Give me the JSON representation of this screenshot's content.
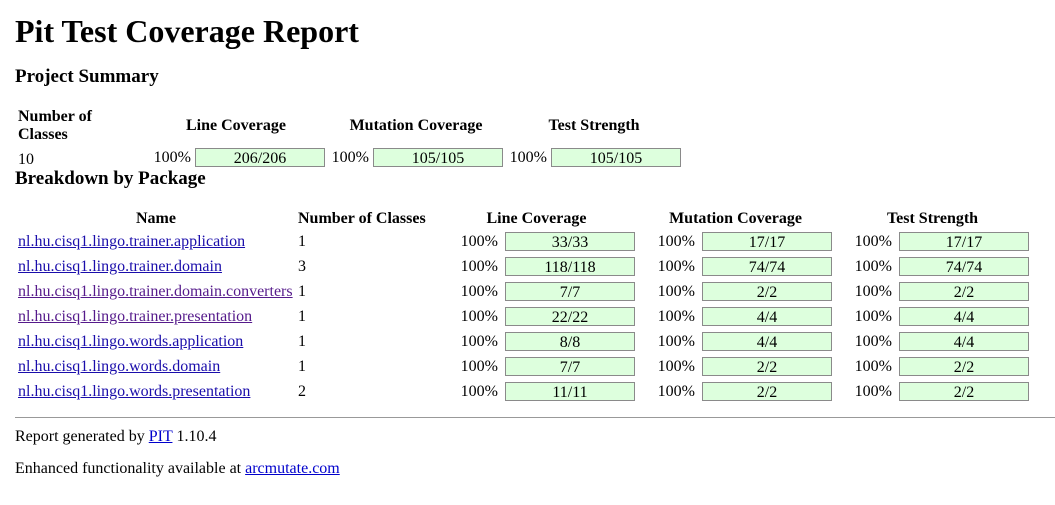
{
  "title": "Pit Test Coverage Report",
  "project_summary": {
    "heading": "Project Summary",
    "headers": [
      "Number of Classes",
      "Line Coverage",
      "Mutation Coverage",
      "Test Strength"
    ],
    "classes": "10",
    "line": {
      "pct": "100%",
      "ratio": "206/206"
    },
    "mutation": {
      "pct": "100%",
      "ratio": "105/105"
    },
    "strength": {
      "pct": "100%",
      "ratio": "105/105"
    }
  },
  "breakdown": {
    "heading": "Breakdown by Package",
    "headers": [
      "Name",
      "Number of Classes",
      "Line Coverage",
      "Mutation Coverage",
      "Test Strength"
    ],
    "rows": [
      {
        "name": "nl.hu.cisq1.lingo.trainer.application",
        "classes": "1",
        "line_pct": "100%",
        "line": "33/33",
        "mut_pct": "100%",
        "mut": "17/17",
        "str_pct": "100%",
        "str": "17/17"
      },
      {
        "name": "nl.hu.cisq1.lingo.trainer.domain",
        "classes": "3",
        "line_pct": "100%",
        "line": "118/118",
        "mut_pct": "100%",
        "mut": "74/74",
        "str_pct": "100%",
        "str": "74/74"
      },
      {
        "name": "nl.hu.cisq1.lingo.trainer.domain.converters",
        "classes": "1",
        "line_pct": "100%",
        "line": "7/7",
        "mut_pct": "100%",
        "mut": "2/2",
        "str_pct": "100%",
        "str": "2/2"
      },
      {
        "name": "nl.hu.cisq1.lingo.trainer.presentation",
        "classes": "1",
        "line_pct": "100%",
        "line": "22/22",
        "mut_pct": "100%",
        "mut": "4/4",
        "str_pct": "100%",
        "str": "4/4"
      },
      {
        "name": "nl.hu.cisq1.lingo.words.application",
        "classes": "1",
        "line_pct": "100%",
        "line": "8/8",
        "mut_pct": "100%",
        "mut": "4/4",
        "str_pct": "100%",
        "str": "4/4"
      },
      {
        "name": "nl.hu.cisq1.lingo.words.domain",
        "classes": "1",
        "line_pct": "100%",
        "line": "7/7",
        "mut_pct": "100%",
        "mut": "2/2",
        "str_pct": "100%",
        "str": "2/2"
      },
      {
        "name": "nl.hu.cisq1.lingo.words.presentation",
        "classes": "2",
        "line_pct": "100%",
        "line": "11/11",
        "mut_pct": "100%",
        "mut": "2/2",
        "str_pct": "100%",
        "str": "2/2"
      }
    ]
  },
  "footer": {
    "generated_prefix": "Report generated by",
    "pit_link": "PIT",
    "version": "1.10.4",
    "enhanced_prefix": "Enhanced functionality available at",
    "arcmutate_link": "arcmutate.com"
  },
  "colors": {
    "bar_fill": "#ddffdd",
    "link": "#0000cc",
    "visited_link": "#551a8b"
  }
}
